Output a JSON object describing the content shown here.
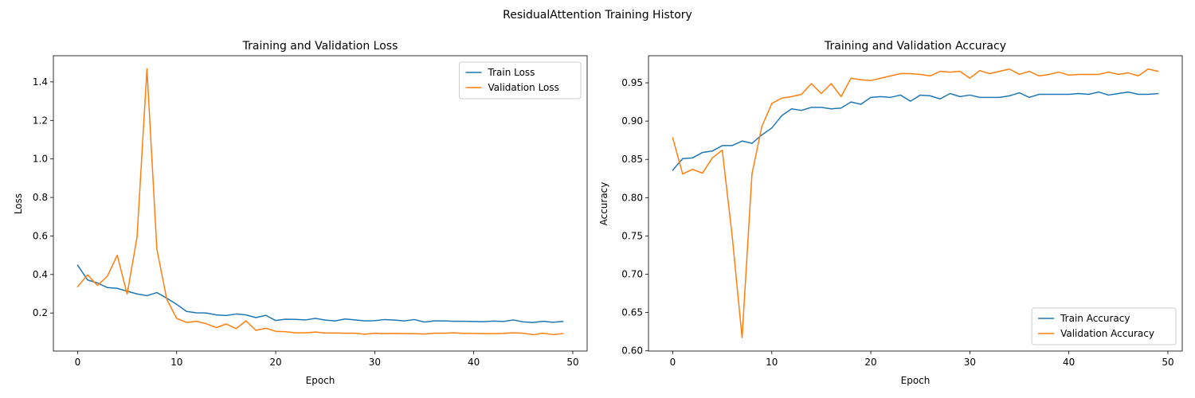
{
  "figure": {
    "suptitle": "ResidualAttention Training History"
  },
  "chart_data": [
    {
      "type": "line",
      "title": "Training and Validation Loss",
      "xlabel": "Epoch",
      "ylabel": "Loss",
      "xlim": [
        -2.45,
        51.45
      ],
      "ylim": [
        0.0025,
        1.536
      ],
      "xticks": [
        0,
        10,
        20,
        30,
        40,
        50
      ],
      "yticks": [
        0.2,
        0.4,
        0.6,
        0.8,
        1.0,
        1.2,
        1.4
      ],
      "ytick_decimals": 1,
      "grid": false,
      "legend": "top-right",
      "series": [
        {
          "name": "Train Loss",
          "color": "#1f77b4",
          "x": [
            0,
            1,
            2,
            3,
            4,
            5,
            6,
            7,
            8,
            9,
            10,
            11,
            12,
            13,
            14,
            15,
            16,
            17,
            18,
            19,
            20,
            21,
            22,
            23,
            24,
            25,
            26,
            27,
            28,
            29,
            30,
            31,
            32,
            33,
            34,
            35,
            36,
            37,
            38,
            39,
            40,
            41,
            42,
            43,
            44,
            45,
            46,
            47,
            48,
            49
          ],
          "values": [
            0.448,
            0.372,
            0.356,
            0.332,
            0.328,
            0.313,
            0.299,
            0.29,
            0.306,
            0.277,
            0.245,
            0.208,
            0.201,
            0.2,
            0.19,
            0.187,
            0.195,
            0.19,
            0.176,
            0.188,
            0.161,
            0.168,
            0.167,
            0.164,
            0.172,
            0.163,
            0.159,
            0.169,
            0.164,
            0.159,
            0.16,
            0.166,
            0.163,
            0.159,
            0.166,
            0.153,
            0.159,
            0.159,
            0.157,
            0.157,
            0.156,
            0.155,
            0.158,
            0.156,
            0.164,
            0.154,
            0.151,
            0.157,
            0.152,
            0.156
          ]
        },
        {
          "name": "Validation Loss",
          "color": "#ff7f0e",
          "x": [
            0,
            1,
            2,
            3,
            4,
            5,
            6,
            7,
            8,
            9,
            10,
            11,
            12,
            13,
            14,
            15,
            16,
            17,
            18,
            19,
            20,
            21,
            22,
            23,
            24,
            25,
            26,
            27,
            28,
            29,
            30,
            31,
            32,
            33,
            34,
            35,
            36,
            37,
            38,
            39,
            40,
            41,
            42,
            43,
            44,
            45,
            46,
            47,
            48,
            49
          ],
          "values": [
            0.337,
            0.398,
            0.343,
            0.391,
            0.5,
            0.298,
            0.595,
            1.468,
            0.532,
            0.271,
            0.172,
            0.151,
            0.157,
            0.144,
            0.124,
            0.143,
            0.119,
            0.159,
            0.11,
            0.121,
            0.105,
            0.103,
            0.097,
            0.097,
            0.101,
            0.096,
            0.096,
            0.095,
            0.095,
            0.09,
            0.095,
            0.093,
            0.094,
            0.093,
            0.093,
            0.091,
            0.095,
            0.095,
            0.097,
            0.094,
            0.094,
            0.093,
            0.093,
            0.094,
            0.097,
            0.095,
            0.087,
            0.095,
            0.088,
            0.093
          ]
        }
      ]
    },
    {
      "type": "line",
      "title": "Training and Validation Accuracy",
      "xlabel": "Epoch",
      "ylabel": "Accuracy",
      "xlim": [
        -2.45,
        51.45
      ],
      "ylim": [
        0.5997,
        0.9854
      ],
      "xticks": [
        0,
        10,
        20,
        30,
        40,
        50
      ],
      "yticks": [
        0.6,
        0.65,
        0.7,
        0.75,
        0.8,
        0.85,
        0.9,
        0.95
      ],
      "ytick_decimals": 2,
      "grid": false,
      "legend": "bottom-right",
      "series": [
        {
          "name": "Train Accuracy",
          "color": "#1f77b4",
          "x": [
            0,
            1,
            2,
            3,
            4,
            5,
            6,
            7,
            8,
            9,
            10,
            11,
            12,
            13,
            14,
            15,
            16,
            17,
            18,
            19,
            20,
            21,
            22,
            23,
            24,
            25,
            26,
            27,
            28,
            29,
            30,
            31,
            32,
            33,
            34,
            35,
            36,
            37,
            38,
            39,
            40,
            41,
            42,
            43,
            44,
            45,
            46,
            47,
            48,
            49
          ],
          "values": [
            0.836,
            0.851,
            0.852,
            0.859,
            0.861,
            0.868,
            0.868,
            0.874,
            0.871,
            0.882,
            0.891,
            0.907,
            0.916,
            0.914,
            0.918,
            0.918,
            0.916,
            0.917,
            0.925,
            0.922,
            0.931,
            0.932,
            0.931,
            0.934,
            0.926,
            0.934,
            0.933,
            0.929,
            0.936,
            0.932,
            0.934,
            0.931,
            0.931,
            0.931,
            0.933,
            0.937,
            0.931,
            0.935,
            0.935,
            0.935,
            0.935,
            0.936,
            0.935,
            0.938,
            0.934,
            0.936,
            0.938,
            0.935,
            0.935,
            0.936
          ]
        },
        {
          "name": "Validation Accuracy",
          "color": "#ff7f0e",
          "x": [
            0,
            1,
            2,
            3,
            4,
            5,
            6,
            7,
            8,
            9,
            10,
            11,
            12,
            13,
            14,
            15,
            16,
            17,
            18,
            19,
            20,
            21,
            22,
            23,
            24,
            25,
            26,
            27,
            28,
            29,
            30,
            31,
            32,
            33,
            34,
            35,
            36,
            37,
            38,
            39,
            40,
            41,
            42,
            43,
            44,
            45,
            46,
            47,
            48,
            49
          ],
          "values": [
            0.878,
            0.831,
            0.837,
            0.832,
            0.852,
            0.862,
            0.75,
            0.617,
            0.831,
            0.893,
            0.923,
            0.93,
            0.932,
            0.935,
            0.949,
            0.936,
            0.949,
            0.932,
            0.956,
            0.954,
            0.953,
            0.956,
            0.959,
            0.962,
            0.962,
            0.961,
            0.959,
            0.965,
            0.964,
            0.965,
            0.956,
            0.966,
            0.962,
            0.965,
            0.968,
            0.961,
            0.965,
            0.959,
            0.961,
            0.964,
            0.96,
            0.961,
            0.961,
            0.961,
            0.964,
            0.961,
            0.963,
            0.959,
            0.968,
            0.965
          ]
        }
      ]
    }
  ]
}
